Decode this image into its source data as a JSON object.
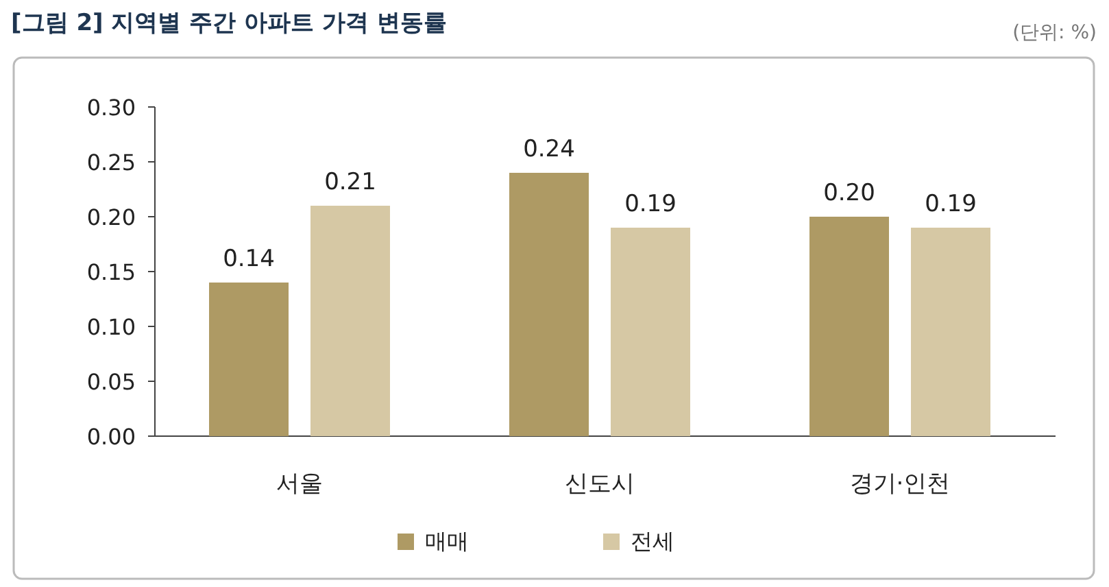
{
  "chart_data": {
    "type": "bar",
    "title": "[그림 2] 지역별 주간 아파트 가격 변동률",
    "annotations": [
      "(단위: %)"
    ],
    "categories": [
      "서울",
      "신도시",
      "경기·인천"
    ],
    "series": [
      {
        "name": "매매",
        "color": "#ae9a64",
        "values": [
          0.14,
          0.24,
          0.2
        ],
        "value_labels": [
          "0.14",
          "0.24",
          "0.20"
        ]
      },
      {
        "name": "전세",
        "color": "#d6c8a4",
        "values": [
          0.21,
          0.19,
          0.19
        ],
        "value_labels": [
          "0.21",
          "0.19",
          "0.19"
        ]
      }
    ],
    "ylim": [
      0,
      0.3
    ],
    "yticks": [
      {
        "value": 0,
        "label": "0.00"
      },
      {
        "value": 0.05,
        "label": "0.05"
      },
      {
        "value": 0.1,
        "label": "0.10"
      },
      {
        "value": 0.15,
        "label": "0.15"
      },
      {
        "value": 0.2,
        "label": "0.20"
      },
      {
        "value": 0.25,
        "label": "0.25"
      },
      {
        "value": 0.3,
        "label": "0.30"
      }
    ],
    "legend": "bottom"
  }
}
